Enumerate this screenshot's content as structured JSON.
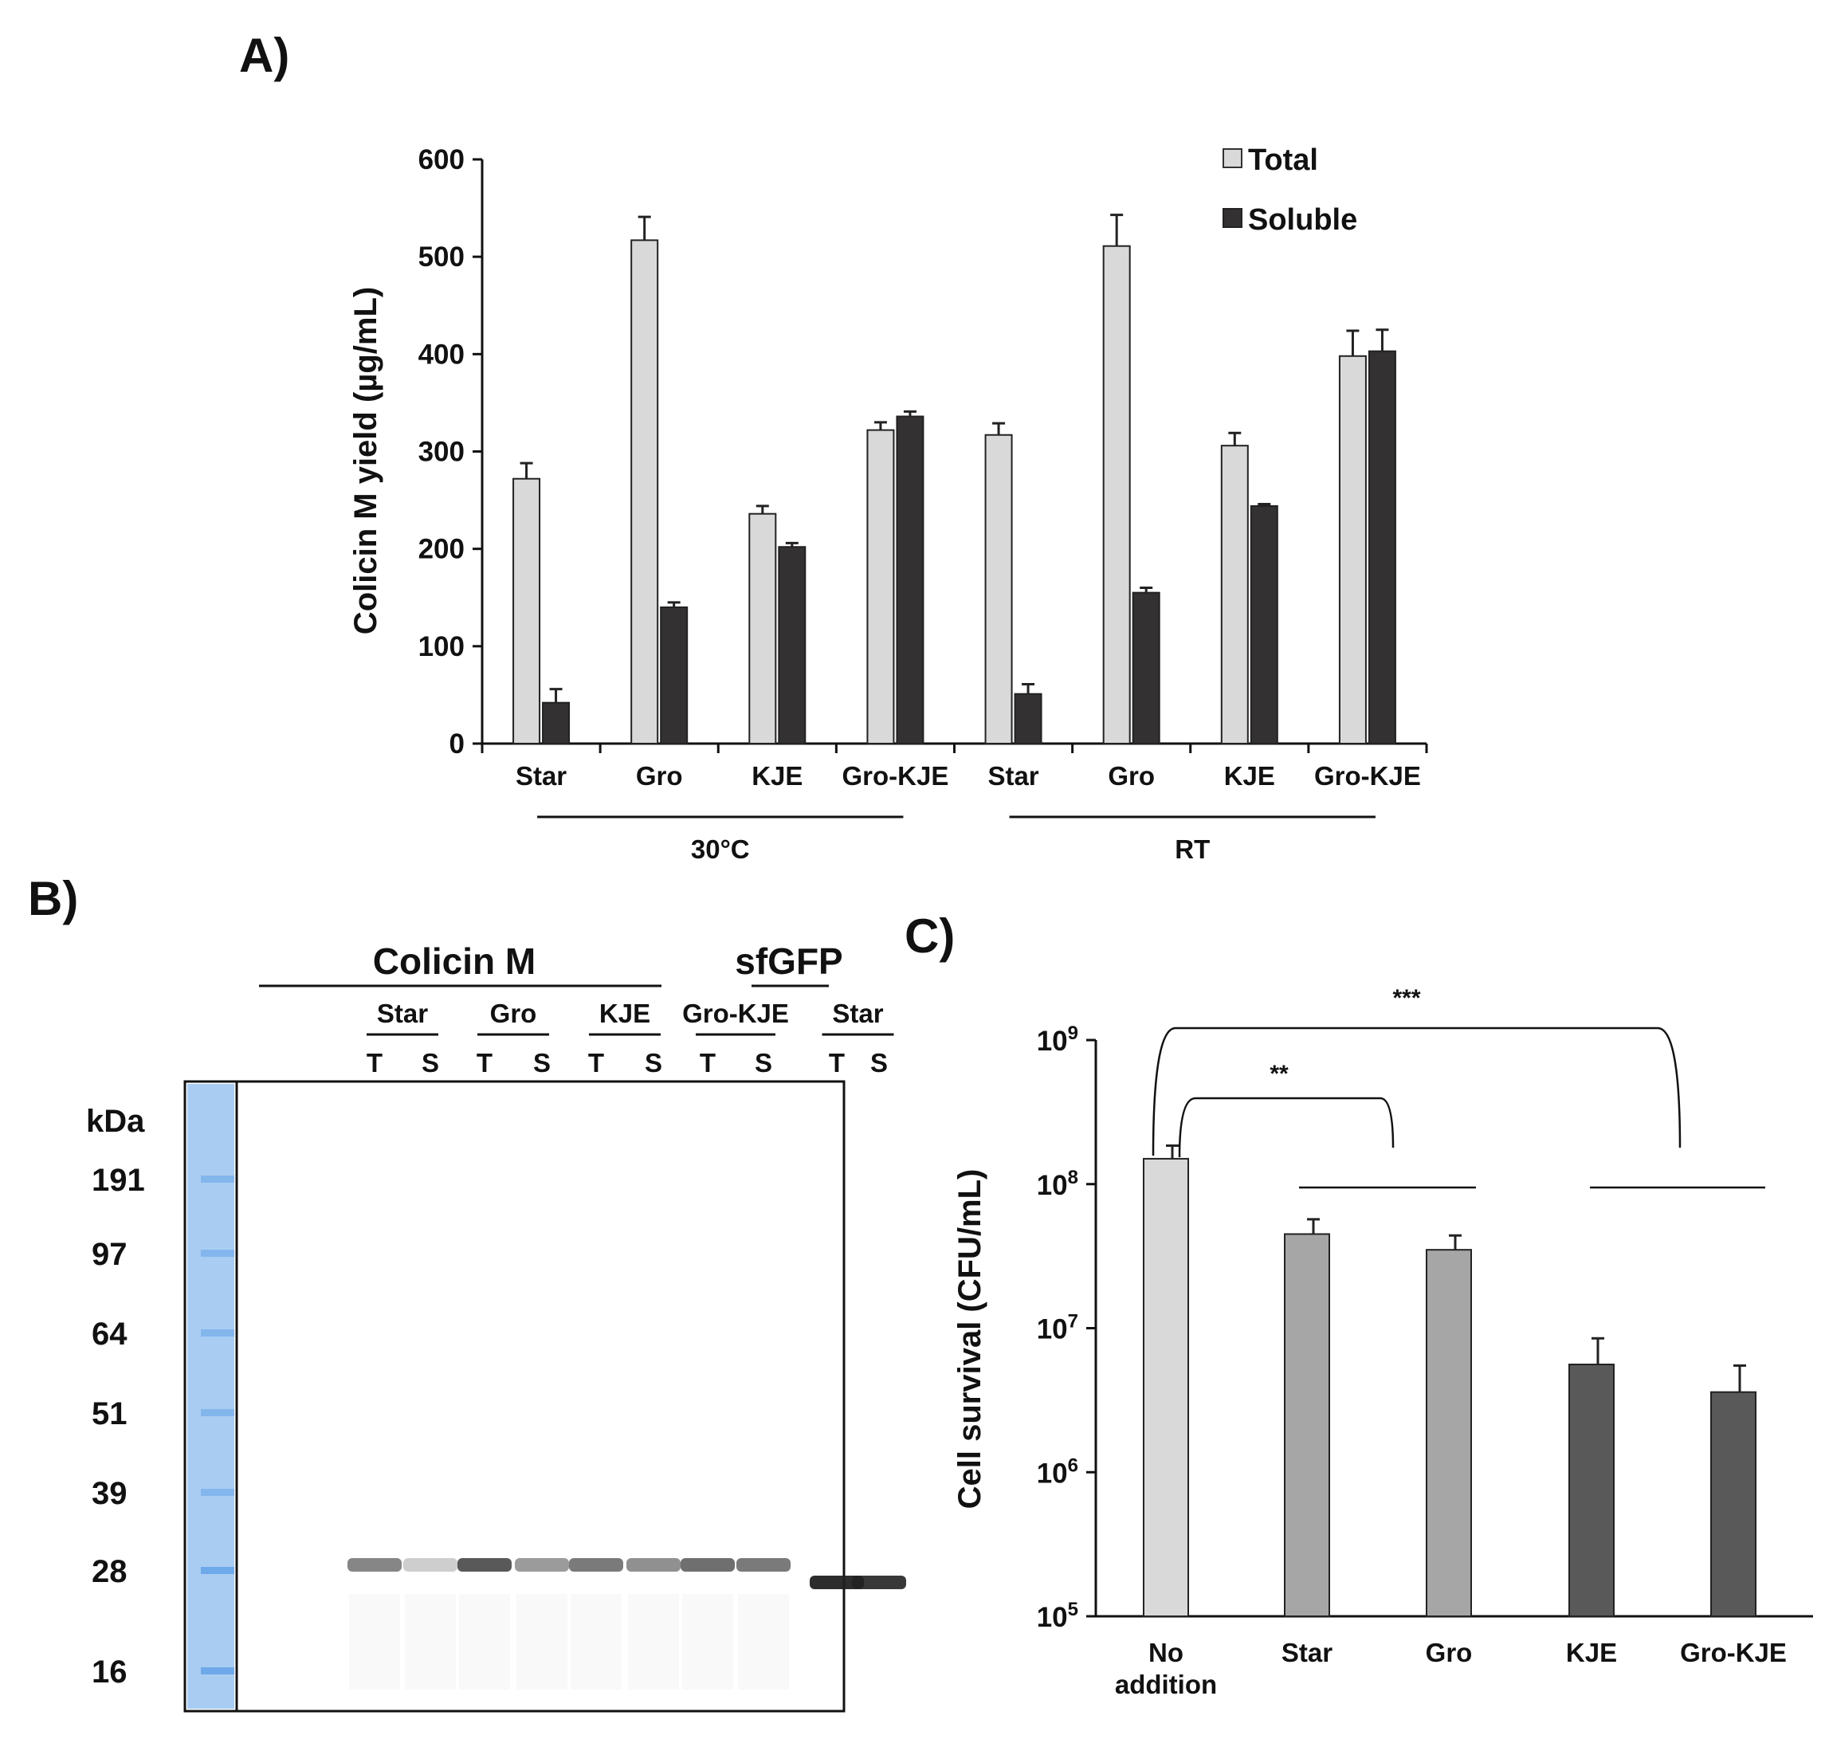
{
  "panels": {
    "a": "A)",
    "b": "B)",
    "c": "C)"
  },
  "colors": {
    "total": "#d9d9d9",
    "soluble": "#333131",
    "c_light": "#d9d9d9",
    "c_mid": "#a6a6a6",
    "c_dark": "#595959",
    "ladder": "#6aa7e8"
  },
  "chart_data": [
    {
      "id": "A",
      "type": "bar",
      "categories": [
        "Star",
        "Gro",
        "KJE",
        "Gro-KJE",
        "Star",
        "Gro",
        "KJE",
        "Gro-KJE"
      ],
      "groups": [
        {
          "label": "30°C",
          "indices": [
            0,
            1,
            2,
            3
          ]
        },
        {
          "label": "RT",
          "indices": [
            4,
            5,
            6,
            7
          ]
        }
      ],
      "series": [
        {
          "name": "Total",
          "values": [
            272,
            517,
            236,
            322,
            317,
            511,
            306,
            398
          ],
          "errors": [
            16,
            24,
            8,
            8,
            12,
            32,
            13,
            26
          ]
        },
        {
          "name": "Soluble",
          "values": [
            42,
            140,
            202,
            336,
            51,
            155,
            244,
            403
          ],
          "errors": [
            14,
            5,
            4,
            5,
            10,
            5,
            2,
            22
          ]
        }
      ],
      "ylabel": "Colicin M yield (µg/mL)",
      "ylim": [
        0,
        600
      ],
      "yticks": [
        0,
        100,
        200,
        300,
        400,
        500,
        600
      ],
      "legend": "top-right"
    },
    {
      "id": "C",
      "type": "bar",
      "scale": "log",
      "categories": [
        "No addition",
        "Star",
        "Gro",
        "KJE",
        "Gro-KJE"
      ],
      "values": [
        150000000,
        45000000,
        35000000,
        5600000,
        3600000
      ],
      "error_upper": [
        185000000,
        57000000,
        44000000,
        8500000,
        5500000
      ],
      "ylabel": "Cell survival (CFU/mL)",
      "ylim": [
        100000,
        1000000000
      ],
      "yticks": [
        {
          "base": "10",
          "exp": "5"
        },
        {
          "base": "10",
          "exp": "6"
        },
        {
          "base": "10",
          "exp": "7"
        },
        {
          "base": "10",
          "exp": "8"
        },
        {
          "base": "10",
          "exp": "9"
        }
      ],
      "significance": [
        {
          "label": "**",
          "from": "No addition",
          "to": "Star, Gro"
        },
        {
          "label": "***",
          "from": "No addition",
          "to": "KJE, Gro-KJE"
        }
      ]
    }
  ],
  "gel": {
    "header_left": "Colicin M",
    "header_right": "sfGFP",
    "groups": [
      "Star",
      "Gro",
      "KJE",
      "Gro-KJE",
      "Star"
    ],
    "lane_labels": [
      "T",
      "S",
      "T",
      "S",
      "T",
      "S",
      "T",
      "S",
      "T",
      "S"
    ],
    "kda_label": "kDa",
    "markers": [
      "191",
      "97",
      "64",
      "51",
      "39",
      "28",
      "16"
    ],
    "band_intensity": [
      0.55,
      0.22,
      0.75,
      0.45,
      0.6,
      0.5,
      0.65,
      0.6,
      0.95,
      0.9
    ]
  }
}
